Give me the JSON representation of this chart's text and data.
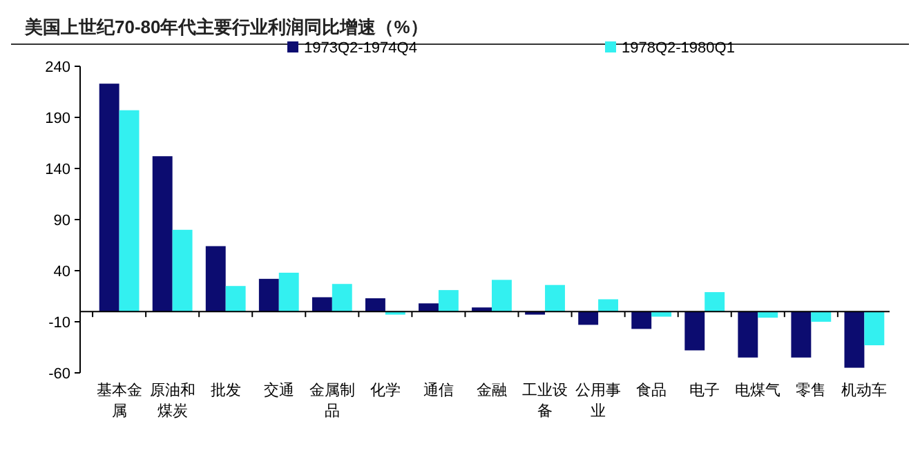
{
  "chart_data": {
    "type": "bar",
    "title": "美国上世纪70-80年代主要行业利润同比增速（%）",
    "categories": [
      "基本金属",
      "原油和煤炭",
      "批发",
      "交通",
      "金属制品",
      "化学",
      "通信",
      "金融",
      "工业设备",
      "公用事业",
      "食品",
      "电子",
      "电煤气",
      "零售",
      "机动车"
    ],
    "series": [
      {
        "name": "1973Q2-1974Q4",
        "color": "#0c0c70",
        "values": [
          223,
          152,
          64,
          32,
          14,
          13,
          8,
          4,
          -3,
          -13,
          -17,
          -38,
          -45,
          -45,
          -55
        ]
      },
      {
        "name": "1978Q2-1980Q1",
        "color": "#33f0f0",
        "values": [
          197,
          80,
          25,
          38,
          27,
          -3,
          21,
          31,
          26,
          12,
          -5,
          19,
          -6,
          -10,
          -33
        ]
      }
    ],
    "ylim": [
      -60,
      240
    ],
    "yticks": [
      240,
      190,
      140,
      90,
      40,
      -10,
      -60
    ],
    "legend": "top",
    "grid": false
  }
}
